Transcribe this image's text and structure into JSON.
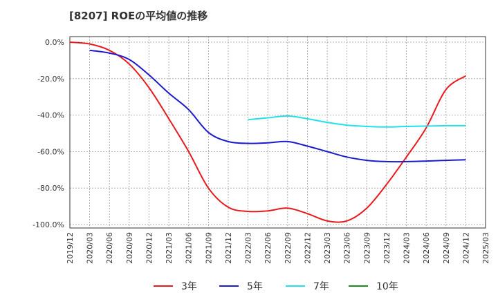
{
  "chart_data": {
    "type": "line",
    "title": "[8207]  ROEの平均値の推移",
    "xlabel": "",
    "ylabel": "",
    "ylim": [
      -100,
      0
    ],
    "grid": true,
    "legend_placement": "bottom",
    "x_ticks": [
      "2019/12",
      "2020/03",
      "2020/06",
      "2020/09",
      "2020/12",
      "2021/03",
      "2021/06",
      "2021/09",
      "2021/12",
      "2022/03",
      "2022/06",
      "2022/09",
      "2022/12",
      "2023/03",
      "2023/06",
      "2023/09",
      "2023/12",
      "2024/03",
      "2024/06",
      "2024/09",
      "2024/12",
      "2025/03"
    ],
    "y_ticks": [
      "0.0%",
      "-20.0%",
      "-40.0%",
      "-60.0%",
      "-80.0%",
      "-100.0%"
    ],
    "y_tick_values": [
      0,
      -20,
      -40,
      -60,
      -80,
      -100
    ],
    "x": [
      "2019/12",
      "2020/03",
      "2020/06",
      "2020/09",
      "2020/12",
      "2021/03",
      "2021/06",
      "2021/09",
      "2021/12",
      "2022/03",
      "2022/06",
      "2022/09",
      "2022/12",
      "2023/03",
      "2023/06",
      "2023/09",
      "2023/12",
      "2024/03",
      "2024/06",
      "2024/09",
      "2024/12"
    ],
    "series": [
      {
        "name": "3年",
        "color": "#e8191c",
        "values": [
          0.0,
          -1.0,
          -4.5,
          -12.0,
          -25.0,
          -42.0,
          -60.0,
          -80.0,
          -90.5,
          -92.8,
          -92.5,
          -91.0,
          -94.0,
          -98.0,
          -98.0,
          -91.0,
          -78.0,
          -63.0,
          -47.0,
          -26.0,
          -18.5
        ]
      },
      {
        "name": "5年",
        "color": "#1a1acc",
        "values": [
          null,
          -4.5,
          -6.0,
          -9.5,
          -18.0,
          -28.0,
          -37.0,
          -49.5,
          -54.5,
          -55.5,
          -55.2,
          -54.5,
          -57.0,
          -60.0,
          -63.0,
          -64.8,
          -65.5,
          -65.5,
          -65.2,
          -64.8,
          -64.5
        ]
      },
      {
        "name": "7年",
        "color": "#22e0e8",
        "values": [
          null,
          null,
          null,
          null,
          null,
          null,
          null,
          null,
          null,
          -42.5,
          -41.5,
          -40.5,
          -42.0,
          -44.0,
          -45.5,
          -46.2,
          -46.5,
          -46.2,
          -46.0,
          -45.8,
          -45.8
        ]
      },
      {
        "name": "10年",
        "color": "#1a8c1a",
        "values": [
          null,
          null,
          null,
          null,
          null,
          null,
          null,
          null,
          null,
          null,
          null,
          null,
          null,
          null,
          null,
          null,
          null,
          null,
          null,
          null,
          null
        ]
      }
    ]
  }
}
